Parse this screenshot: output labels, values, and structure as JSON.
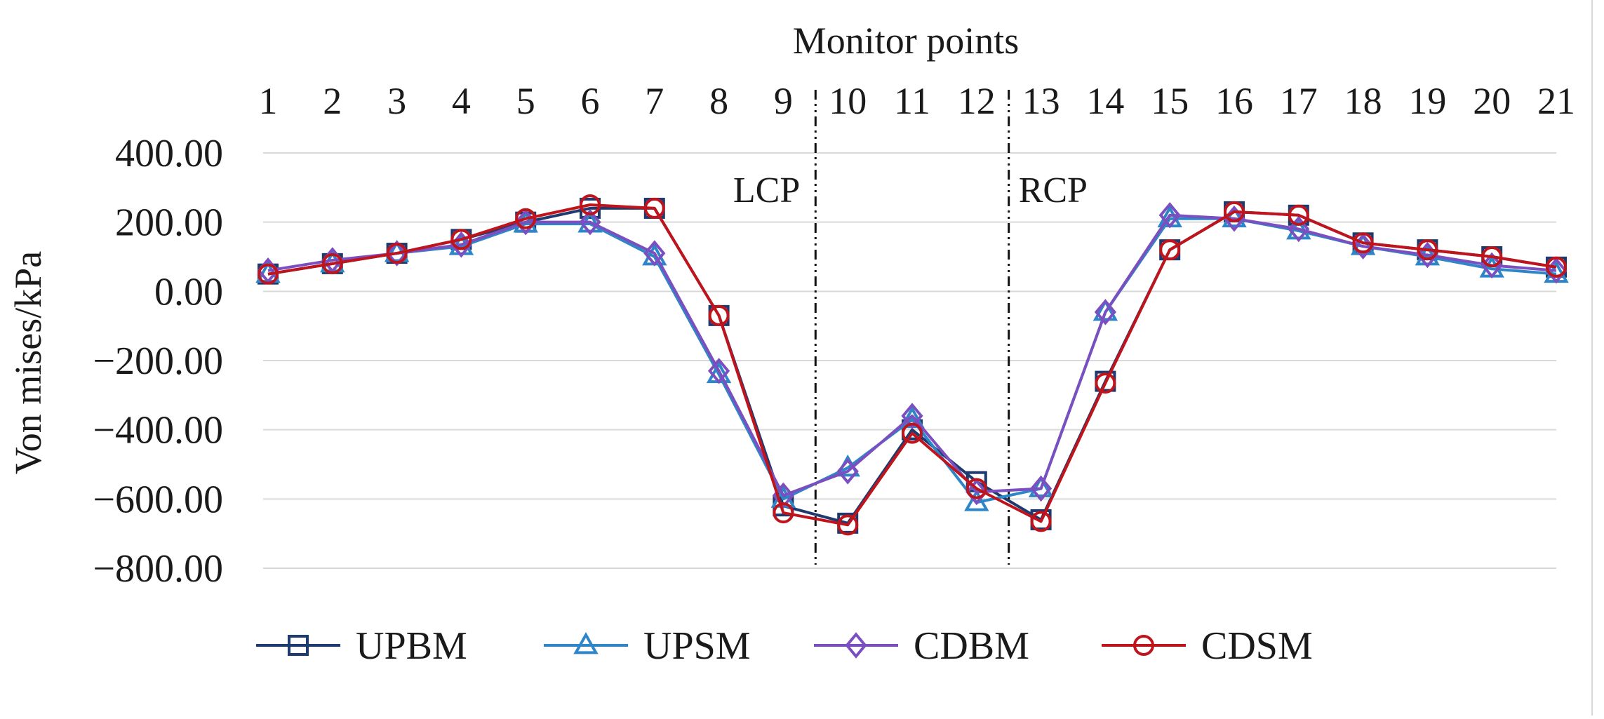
{
  "chart_data": {
    "type": "line",
    "title": "",
    "xlabel": "Monitor points",
    "ylabel": "Von mises/kPa",
    "x_axis_position": "top",
    "categories": [
      "1",
      "2",
      "3",
      "4",
      "5",
      "6",
      "7",
      "8",
      "9",
      "10",
      "11",
      "12",
      "13",
      "14",
      "15",
      "16",
      "17",
      "18",
      "19",
      "20",
      "21"
    ],
    "yticks": [
      "400.00",
      "200.00",
      "0.00",
      "−200.00",
      "−400.00",
      "−600.00",
      "−800.00"
    ],
    "ytick_values": [
      400,
      200,
      0,
      -200,
      -400,
      -600,
      -800
    ],
    "ylim": [
      -800,
      400
    ],
    "grid": true,
    "legend_position": "bottom",
    "series": [
      {
        "name": "UPBM",
        "color": "#1f3a6e",
        "marker": "square",
        "values": [
          50,
          80,
          110,
          150,
          200,
          240,
          240,
          -70,
          -620,
          -670,
          -400,
          -550,
          -660,
          -260,
          120,
          230,
          220,
          140,
          120,
          100,
          70
        ]
      },
      {
        "name": "UPSM",
        "color": "#2e86c8",
        "marker": "triangle",
        "values": [
          50,
          80,
          110,
          130,
          195,
          195,
          100,
          -240,
          -600,
          -510,
          -370,
          -610,
          -570,
          -60,
          210,
          210,
          175,
          130,
          100,
          65,
          50
        ]
      },
      {
        "name": "CDBM",
        "color": "#7b4fbf",
        "marker": "diamond",
        "values": [
          60,
          90,
          110,
          135,
          200,
          200,
          110,
          -230,
          -590,
          -520,
          -360,
          -580,
          -570,
          -60,
          220,
          210,
          180,
          130,
          105,
          75,
          60
        ]
      },
      {
        "name": "CDSM",
        "color": "#c0141c",
        "marker": "circle",
        "values": [
          50,
          80,
          110,
          150,
          210,
          250,
          240,
          -70,
          -640,
          -675,
          -410,
          -570,
          -665,
          -265,
          120,
          230,
          220,
          140,
          120,
          100,
          70
        ]
      }
    ],
    "annotations": [
      {
        "text": "LCP",
        "between": [
          "9",
          "10"
        ]
      },
      {
        "text": "RCP",
        "between": [
          "12",
          "13"
        ]
      }
    ]
  }
}
